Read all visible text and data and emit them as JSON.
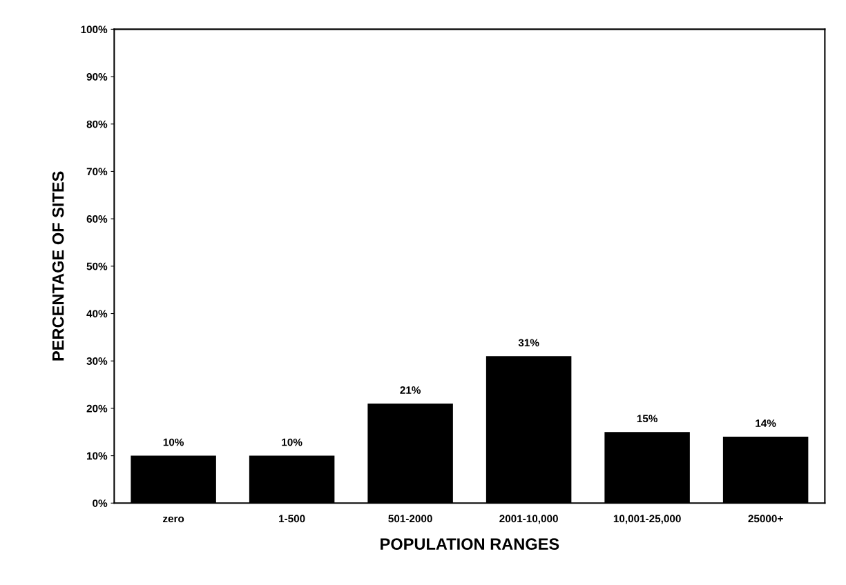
{
  "chart_data": {
    "type": "bar",
    "xlabel": "POPULATION RANGES",
    "ylabel": "PERCENTAGE OF SITES",
    "categories": [
      "zero",
      "1-500",
      "501-2000",
      "2001-10,000",
      "10,001-25,000",
      "25000+"
    ],
    "values": [
      10,
      10,
      21,
      31,
      15,
      14
    ],
    "value_labels": [
      "10%",
      "10%",
      "21%",
      "31%",
      "15%",
      "14%"
    ],
    "color": "#000000",
    "ylim": [
      0,
      100
    ],
    "yticks": [
      {
        "value": 0,
        "label": "0%"
      },
      {
        "value": 10,
        "label": "10%"
      },
      {
        "value": 20,
        "label": "20%"
      },
      {
        "value": 30,
        "label": "30%"
      },
      {
        "value": 40,
        "label": "40%"
      },
      {
        "value": 50,
        "label": "50%"
      },
      {
        "value": 60,
        "label": "60%"
      },
      {
        "value": 70,
        "label": "70%"
      },
      {
        "value": 80,
        "label": "80%"
      },
      {
        "value": 90,
        "label": "90%"
      },
      {
        "value": 100,
        "label": "100%"
      }
    ],
    "grid": false
  }
}
